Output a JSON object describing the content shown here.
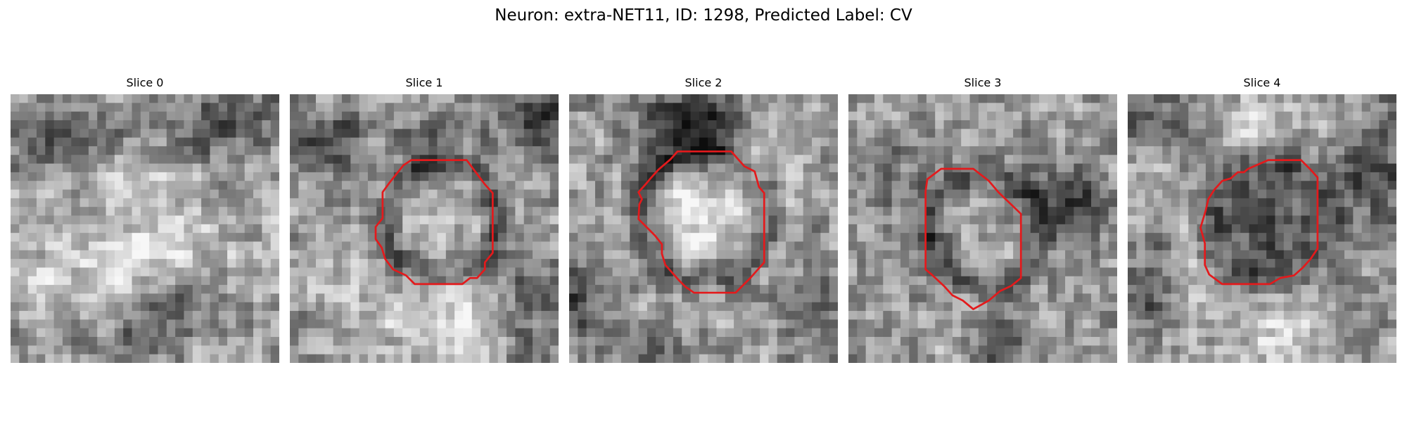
{
  "figure": {
    "title": "Neuron: extra-NET11, ID: 1298, Predicted Label: CV",
    "contour_color": "#e31a1c"
  },
  "slices": [
    {
      "title": "Slice 0",
      "has_contour": false
    },
    {
      "title": "Slice 1",
      "has_contour": true
    },
    {
      "title": "Slice 2",
      "has_contour": true
    },
    {
      "title": "Slice 3",
      "has_contour": true
    },
    {
      "title": "Slice 4",
      "has_contour": true
    }
  ]
}
